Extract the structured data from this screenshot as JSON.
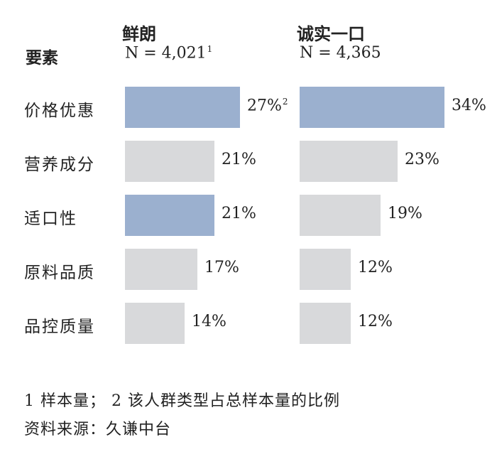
{
  "chart_data": {
    "type": "bar",
    "orientation": "horizontal",
    "row_header": "要素",
    "categories": [
      "价格优惠",
      "营养成分",
      "适口性",
      "原料品质",
      "品控质量"
    ],
    "series": [
      {
        "name": "鲜朗",
        "n_label": "N = 4,021",
        "n_sup": "1",
        "values": [
          27,
          21,
          21,
          17,
          14
        ],
        "value_labels": [
          "27%",
          "21%",
          "21%",
          "17%",
          "14%"
        ],
        "value_sups": [
          "2",
          "",
          "",
          "",
          ""
        ],
        "highlight": [
          true,
          false,
          true,
          false,
          false
        ]
      },
      {
        "name": "诚实一口",
        "n_label": "N = 4,365",
        "n_sup": "",
        "values": [
          34,
          23,
          19,
          12,
          12
        ],
        "value_labels": [
          "34%",
          "23%",
          "19%",
          "12%",
          "12%"
        ],
        "value_sups": [
          "",
          "",
          "",
          "",
          ""
        ],
        "highlight": [
          true,
          false,
          false,
          false,
          false
        ]
      }
    ],
    "colors": {
      "highlight": "#9bb0cf",
      "default": "#d8d9db"
    }
  },
  "footnotes": {
    "note": "1 样本量； 2 该人群类型占总样本量的比例",
    "source": "资料来源：久谦中台"
  }
}
